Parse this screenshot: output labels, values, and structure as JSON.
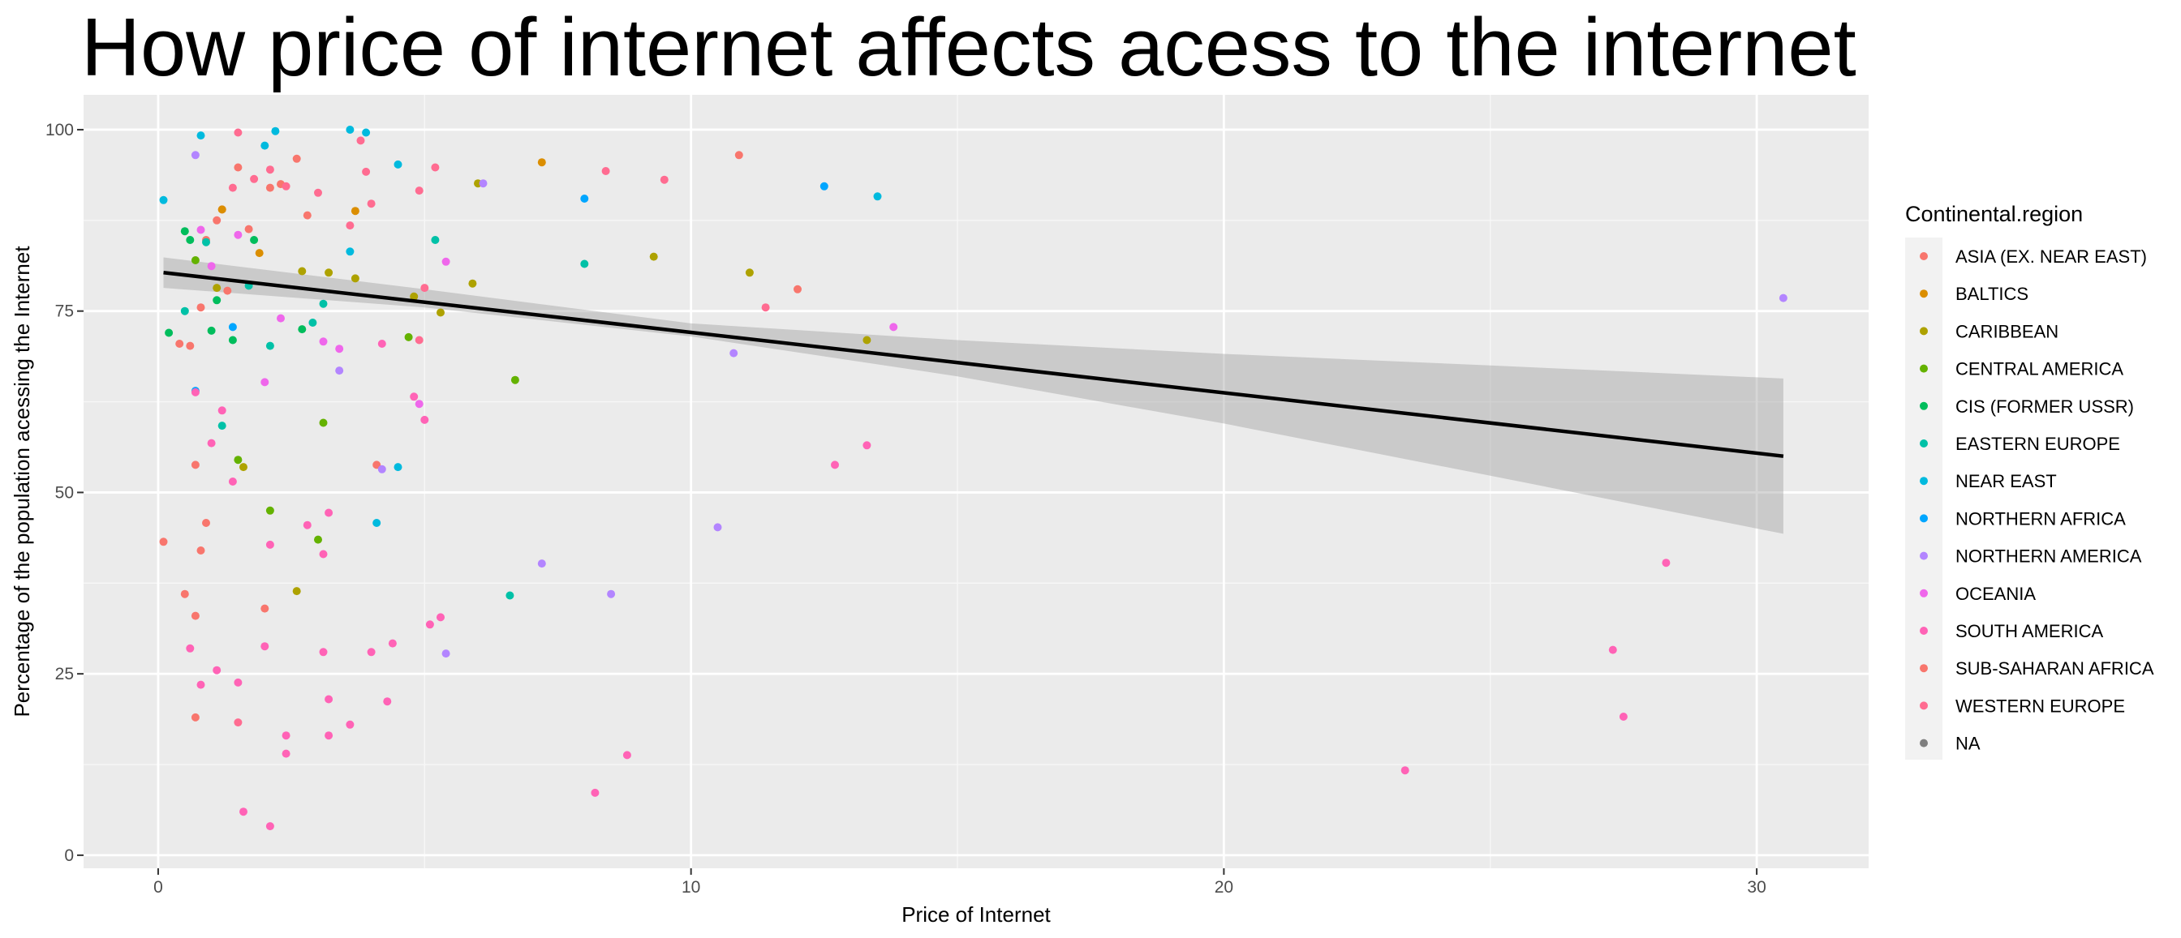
{
  "chart_data": {
    "type": "scatter",
    "title": "How price of internet affects acess to the internet",
    "xlabel": "Price of Internet",
    "ylabel": "Percentage of the population acessing the Internet",
    "xlim": [
      -1.4,
      32.1
    ],
    "ylim": [
      -1.8,
      104.8
    ],
    "xticks": [
      0,
      10,
      20,
      30
    ],
    "yticks": [
      0,
      25,
      50,
      75,
      100
    ],
    "grid": true,
    "legend": {
      "title": "Continental.region",
      "placement": "right",
      "entries": [
        {
          "name": "ASIA (EX. NEAR EAST)",
          "color": "#F8766D"
        },
        {
          "name": "BALTICS",
          "color": "#DB8E00"
        },
        {
          "name": "CARIBBEAN",
          "color": "#AEA200"
        },
        {
          "name": "CENTRAL AMERICA",
          "color": "#64B200"
        },
        {
          "name": "CIS (FORMER USSR)",
          "color": "#00BD5C"
        },
        {
          "name": "EASTERN EUROPE",
          "color": "#00C1A7"
        },
        {
          "name": "NEAR EAST",
          "color": "#00BADE"
        },
        {
          "name": "NORTHERN AFRICA",
          "color": "#00A6FF"
        },
        {
          "name": "NORTHERN AMERICA",
          "color": "#B385FF"
        },
        {
          "name": "OCEANIA",
          "color": "#EF67EB"
        },
        {
          "name": "SOUTH AMERICA",
          "color": "#FF63B6"
        },
        {
          "name": "SUB-SAHARAN AFRICA",
          "color": "#F8766D"
        },
        {
          "name": "WESTERN EUROPE",
          "color": "#FF6C91"
        },
        {
          "name": "NA",
          "color": "#7F7F7F"
        }
      ]
    },
    "trend_line": {
      "x": [
        0.1,
        30.5
      ],
      "y": [
        80.3,
        55.0
      ]
    },
    "confidence_band": {
      "x": [
        0.1,
        5,
        10,
        15,
        20,
        25,
        30.5
      ],
      "lower": [
        78.2,
        75.5,
        71.5,
        66.0,
        59.5,
        52.3,
        44.3
      ],
      "upper": [
        82.4,
        78.0,
        73.3,
        71.0,
        69.1,
        67.5,
        65.7
      ]
    },
    "points": [
      {
        "x": 0.1,
        "y": 43.2,
        "color": "#F8766D"
      },
      {
        "x": 0.5,
        "y": 36.0,
        "color": "#F8766D"
      },
      {
        "x": 0.7,
        "y": 33.0,
        "color": "#F8766D"
      },
      {
        "x": 0.7,
        "y": 19.0,
        "color": "#F8766D"
      },
      {
        "x": 0.7,
        "y": 53.8,
        "color": "#F8766D"
      },
      {
        "x": 0.8,
        "y": 42.0,
        "color": "#F8766D"
      },
      {
        "x": 0.9,
        "y": 45.8,
        "color": "#F8766D"
      },
      {
        "x": 0.4,
        "y": 70.5,
        "color": "#F8766D"
      },
      {
        "x": 0.6,
        "y": 70.2,
        "color": "#F8766D"
      },
      {
        "x": 0.8,
        "y": 75.5,
        "color": "#F8766D"
      },
      {
        "x": 0.9,
        "y": 84.8,
        "color": "#F8766D"
      },
      {
        "x": 1.1,
        "y": 87.5,
        "color": "#F8766D"
      },
      {
        "x": 1.2,
        "y": 89.0,
        "color": "#F8766D"
      },
      {
        "x": 1.3,
        "y": 77.8,
        "color": "#F8766D"
      },
      {
        "x": 1.5,
        "y": 94.8,
        "color": "#F8766D"
      },
      {
        "x": 1.7,
        "y": 86.3,
        "color": "#F8766D"
      },
      {
        "x": 2.0,
        "y": 34.0,
        "color": "#F8766D"
      },
      {
        "x": 2.1,
        "y": 92.0,
        "color": "#F8766D"
      },
      {
        "x": 2.3,
        "y": 92.5,
        "color": "#F8766D"
      },
      {
        "x": 2.6,
        "y": 96.0,
        "color": "#F8766D"
      },
      {
        "x": 2.8,
        "y": 88.2,
        "color": "#F8766D"
      },
      {
        "x": 4.1,
        "y": 53.8,
        "color": "#F8766D"
      },
      {
        "x": 10.9,
        "y": 96.5,
        "color": "#F8766D"
      },
      {
        "x": 12.0,
        "y": 78.0,
        "color": "#F8766D"
      },
      {
        "x": 1.2,
        "y": 89.0,
        "color": "#DB8E00"
      },
      {
        "x": 1.9,
        "y": 83.0,
        "color": "#DB8E00"
      },
      {
        "x": 3.7,
        "y": 88.8,
        "color": "#DB8E00"
      },
      {
        "x": 7.2,
        "y": 95.5,
        "color": "#DB8E00"
      },
      {
        "x": 1.1,
        "y": 78.2,
        "color": "#AEA200"
      },
      {
        "x": 1.6,
        "y": 53.5,
        "color": "#AEA200"
      },
      {
        "x": 2.6,
        "y": 36.4,
        "color": "#AEA200"
      },
      {
        "x": 2.7,
        "y": 80.5,
        "color": "#AEA200"
      },
      {
        "x": 3.2,
        "y": 80.3,
        "color": "#AEA200"
      },
      {
        "x": 3.7,
        "y": 79.5,
        "color": "#AEA200"
      },
      {
        "x": 4.8,
        "y": 77.0,
        "color": "#AEA200"
      },
      {
        "x": 5.3,
        "y": 74.8,
        "color": "#AEA200"
      },
      {
        "x": 5.9,
        "y": 78.8,
        "color": "#AEA200"
      },
      {
        "x": 6.0,
        "y": 92.6,
        "color": "#AEA200"
      },
      {
        "x": 9.3,
        "y": 82.5,
        "color": "#AEA200"
      },
      {
        "x": 11.1,
        "y": 80.3,
        "color": "#AEA200"
      },
      {
        "x": 13.3,
        "y": 71.0,
        "color": "#AEA200"
      },
      {
        "x": 0.7,
        "y": 82.0,
        "color": "#64B200"
      },
      {
        "x": 1.5,
        "y": 54.5,
        "color": "#64B200"
      },
      {
        "x": 2.1,
        "y": 47.5,
        "color": "#64B200"
      },
      {
        "x": 3.0,
        "y": 43.5,
        "color": "#64B200"
      },
      {
        "x": 3.1,
        "y": 59.6,
        "color": "#64B200"
      },
      {
        "x": 4.7,
        "y": 71.4,
        "color": "#64B200"
      },
      {
        "x": 6.7,
        "y": 65.5,
        "color": "#64B200"
      },
      {
        "x": 0.2,
        "y": 72.0,
        "color": "#00BD5C"
      },
      {
        "x": 0.5,
        "y": 86.0,
        "color": "#00BD5C"
      },
      {
        "x": 0.6,
        "y": 84.8,
        "color": "#00BD5C"
      },
      {
        "x": 1.0,
        "y": 72.3,
        "color": "#00BD5C"
      },
      {
        "x": 1.1,
        "y": 76.5,
        "color": "#00BD5C"
      },
      {
        "x": 1.4,
        "y": 71.0,
        "color": "#00BD5C"
      },
      {
        "x": 1.8,
        "y": 84.8,
        "color": "#00BD5C"
      },
      {
        "x": 2.7,
        "y": 72.5,
        "color": "#00BD5C"
      },
      {
        "x": 0.5,
        "y": 75.0,
        "color": "#00C1A7"
      },
      {
        "x": 0.9,
        "y": 84.5,
        "color": "#00C1A7"
      },
      {
        "x": 1.2,
        "y": 59.2,
        "color": "#00C1A7"
      },
      {
        "x": 1.7,
        "y": 78.5,
        "color": "#00C1A7"
      },
      {
        "x": 2.1,
        "y": 70.2,
        "color": "#00C1A7"
      },
      {
        "x": 2.9,
        "y": 73.4,
        "color": "#00C1A7"
      },
      {
        "x": 3.1,
        "y": 76.0,
        "color": "#00C1A7"
      },
      {
        "x": 5.2,
        "y": 84.8,
        "color": "#00C1A7"
      },
      {
        "x": 6.6,
        "y": 35.8,
        "color": "#00C1A7"
      },
      {
        "x": 8.0,
        "y": 81.5,
        "color": "#00C1A7"
      },
      {
        "x": 0.1,
        "y": 90.3,
        "color": "#00BADE"
      },
      {
        "x": 0.8,
        "y": 99.2,
        "color": "#00BADE"
      },
      {
        "x": 2.0,
        "y": 97.8,
        "color": "#00BADE"
      },
      {
        "x": 2.2,
        "y": 99.8,
        "color": "#00BADE"
      },
      {
        "x": 3.6,
        "y": 100.0,
        "color": "#00BADE"
      },
      {
        "x": 3.9,
        "y": 99.6,
        "color": "#00BADE"
      },
      {
        "x": 3.6,
        "y": 83.2,
        "color": "#00BADE"
      },
      {
        "x": 4.1,
        "y": 45.8,
        "color": "#00BADE"
      },
      {
        "x": 4.5,
        "y": 95.2,
        "color": "#00BADE"
      },
      {
        "x": 4.5,
        "y": 53.5,
        "color": "#00BADE"
      },
      {
        "x": 13.5,
        "y": 90.8,
        "color": "#00BADE"
      },
      {
        "x": 0.7,
        "y": 64.0,
        "color": "#00A6FF"
      },
      {
        "x": 1.4,
        "y": 72.8,
        "color": "#00A6FF"
      },
      {
        "x": 8.0,
        "y": 90.5,
        "color": "#00A6FF"
      },
      {
        "x": 12.5,
        "y": 92.2,
        "color": "#00A6FF"
      },
      {
        "x": 0.7,
        "y": 96.5,
        "color": "#B385FF"
      },
      {
        "x": 3.4,
        "y": 66.8,
        "color": "#B385FF"
      },
      {
        "x": 4.2,
        "y": 53.2,
        "color": "#B385FF"
      },
      {
        "x": 5.4,
        "y": 27.8,
        "color": "#B385FF"
      },
      {
        "x": 6.1,
        "y": 92.6,
        "color": "#B385FF"
      },
      {
        "x": 7.2,
        "y": 40.2,
        "color": "#B385FF"
      },
      {
        "x": 8.5,
        "y": 36.0,
        "color": "#B385FF"
      },
      {
        "x": 10.5,
        "y": 45.2,
        "color": "#B385FF"
      },
      {
        "x": 10.8,
        "y": 69.2,
        "color": "#B385FF"
      },
      {
        "x": 30.5,
        "y": 76.8,
        "color": "#B385FF"
      },
      {
        "x": 0.8,
        "y": 86.2,
        "color": "#EF67EB"
      },
      {
        "x": 1.0,
        "y": 81.2,
        "color": "#EF67EB"
      },
      {
        "x": 1.5,
        "y": 85.5,
        "color": "#EF67EB"
      },
      {
        "x": 2.0,
        "y": 65.2,
        "color": "#EF67EB"
      },
      {
        "x": 2.3,
        "y": 74.0,
        "color": "#EF67EB"
      },
      {
        "x": 3.1,
        "y": 70.8,
        "color": "#EF67EB"
      },
      {
        "x": 3.4,
        "y": 69.8,
        "color": "#EF67EB"
      },
      {
        "x": 4.9,
        "y": 62.2,
        "color": "#EF67EB"
      },
      {
        "x": 5.4,
        "y": 81.8,
        "color": "#EF67EB"
      },
      {
        "x": 13.8,
        "y": 72.8,
        "color": "#EF67EB"
      },
      {
        "x": 0.6,
        "y": 28.5,
        "color": "#FF63B6"
      },
      {
        "x": 0.7,
        "y": 63.8,
        "color": "#FF63B6"
      },
      {
        "x": 0.8,
        "y": 23.5,
        "color": "#FF63B6"
      },
      {
        "x": 1.0,
        "y": 56.8,
        "color": "#FF63B6"
      },
      {
        "x": 1.1,
        "y": 25.5,
        "color": "#FF63B6"
      },
      {
        "x": 1.2,
        "y": 61.3,
        "color": "#FF63B6"
      },
      {
        "x": 1.4,
        "y": 51.5,
        "color": "#FF63B6"
      },
      {
        "x": 1.5,
        "y": 23.8,
        "color": "#FF63B6"
      },
      {
        "x": 1.6,
        "y": 6.0,
        "color": "#FF63B6"
      },
      {
        "x": 2.1,
        "y": 4.0,
        "color": "#FF63B6"
      },
      {
        "x": 2.0,
        "y": 28.8,
        "color": "#FF63B6"
      },
      {
        "x": 2.1,
        "y": 42.8,
        "color": "#FF63B6"
      },
      {
        "x": 2.4,
        "y": 16.5,
        "color": "#FF63B6"
      },
      {
        "x": 2.4,
        "y": 14.0,
        "color": "#FF63B6"
      },
      {
        "x": 2.8,
        "y": 45.5,
        "color": "#FF63B6"
      },
      {
        "x": 3.1,
        "y": 28.0,
        "color": "#FF63B6"
      },
      {
        "x": 3.2,
        "y": 21.5,
        "color": "#FF63B6"
      },
      {
        "x": 3.2,
        "y": 16.5,
        "color": "#FF63B6"
      },
      {
        "x": 3.1,
        "y": 41.5,
        "color": "#FF63B6"
      },
      {
        "x": 3.2,
        "y": 47.2,
        "color": "#FF63B6"
      },
      {
        "x": 3.6,
        "y": 18.0,
        "color": "#FF63B6"
      },
      {
        "x": 4.0,
        "y": 28.0,
        "color": "#FF63B6"
      },
      {
        "x": 4.2,
        "y": 70.5,
        "color": "#FF63B6"
      },
      {
        "x": 4.3,
        "y": 21.2,
        "color": "#FF63B6"
      },
      {
        "x": 4.4,
        "y": 29.2,
        "color": "#FF63B6"
      },
      {
        "x": 4.8,
        "y": 63.2,
        "color": "#FF63B6"
      },
      {
        "x": 5.0,
        "y": 60.0,
        "color": "#FF63B6"
      },
      {
        "x": 5.1,
        "y": 31.8,
        "color": "#FF63B6"
      },
      {
        "x": 5.3,
        "y": 32.8,
        "color": "#FF63B6"
      },
      {
        "x": 8.2,
        "y": 8.6,
        "color": "#FF63B6"
      },
      {
        "x": 8.8,
        "y": 13.8,
        "color": "#FF63B6"
      },
      {
        "x": 12.7,
        "y": 53.8,
        "color": "#FF63B6"
      },
      {
        "x": 13.3,
        "y": 56.5,
        "color": "#FF63B6"
      },
      {
        "x": 23.4,
        "y": 11.7,
        "color": "#FF63B6"
      },
      {
        "x": 27.3,
        "y": 28.3,
        "color": "#FF63B6"
      },
      {
        "x": 27.5,
        "y": 19.1,
        "color": "#FF63B6"
      },
      {
        "x": 28.3,
        "y": 40.3,
        "color": "#FF63B6"
      },
      {
        "x": 1.5,
        "y": 99.6,
        "color": "#FF6C91"
      },
      {
        "x": 1.8,
        "y": 93.2,
        "color": "#FF6C91"
      },
      {
        "x": 2.1,
        "y": 94.5,
        "color": "#FF6C91"
      },
      {
        "x": 2.4,
        "y": 92.2,
        "color": "#FF6C91"
      },
      {
        "x": 3.0,
        "y": 91.3,
        "color": "#FF6C91"
      },
      {
        "x": 3.6,
        "y": 86.8,
        "color": "#FF6C91"
      },
      {
        "x": 3.8,
        "y": 98.5,
        "color": "#FF6C91"
      },
      {
        "x": 3.9,
        "y": 94.2,
        "color": "#FF6C91"
      },
      {
        "x": 4.0,
        "y": 89.8,
        "color": "#FF6C91"
      },
      {
        "x": 4.9,
        "y": 91.6,
        "color": "#FF6C91"
      },
      {
        "x": 5.2,
        "y": 94.8,
        "color": "#FF6C91"
      },
      {
        "x": 5.0,
        "y": 78.2,
        "color": "#FF6C91"
      },
      {
        "x": 4.9,
        "y": 71.0,
        "color": "#FF6C91"
      },
      {
        "x": 8.4,
        "y": 94.3,
        "color": "#FF6C91"
      },
      {
        "x": 9.5,
        "y": 93.1,
        "color": "#FF6C91"
      },
      {
        "x": 11.4,
        "y": 75.5,
        "color": "#FF6C91"
      },
      {
        "x": 1.4,
        "y": 92.0,
        "color": "#FF6C91"
      },
      {
        "x": 1.5,
        "y": 18.3,
        "color": "#FF6C91"
      }
    ]
  }
}
